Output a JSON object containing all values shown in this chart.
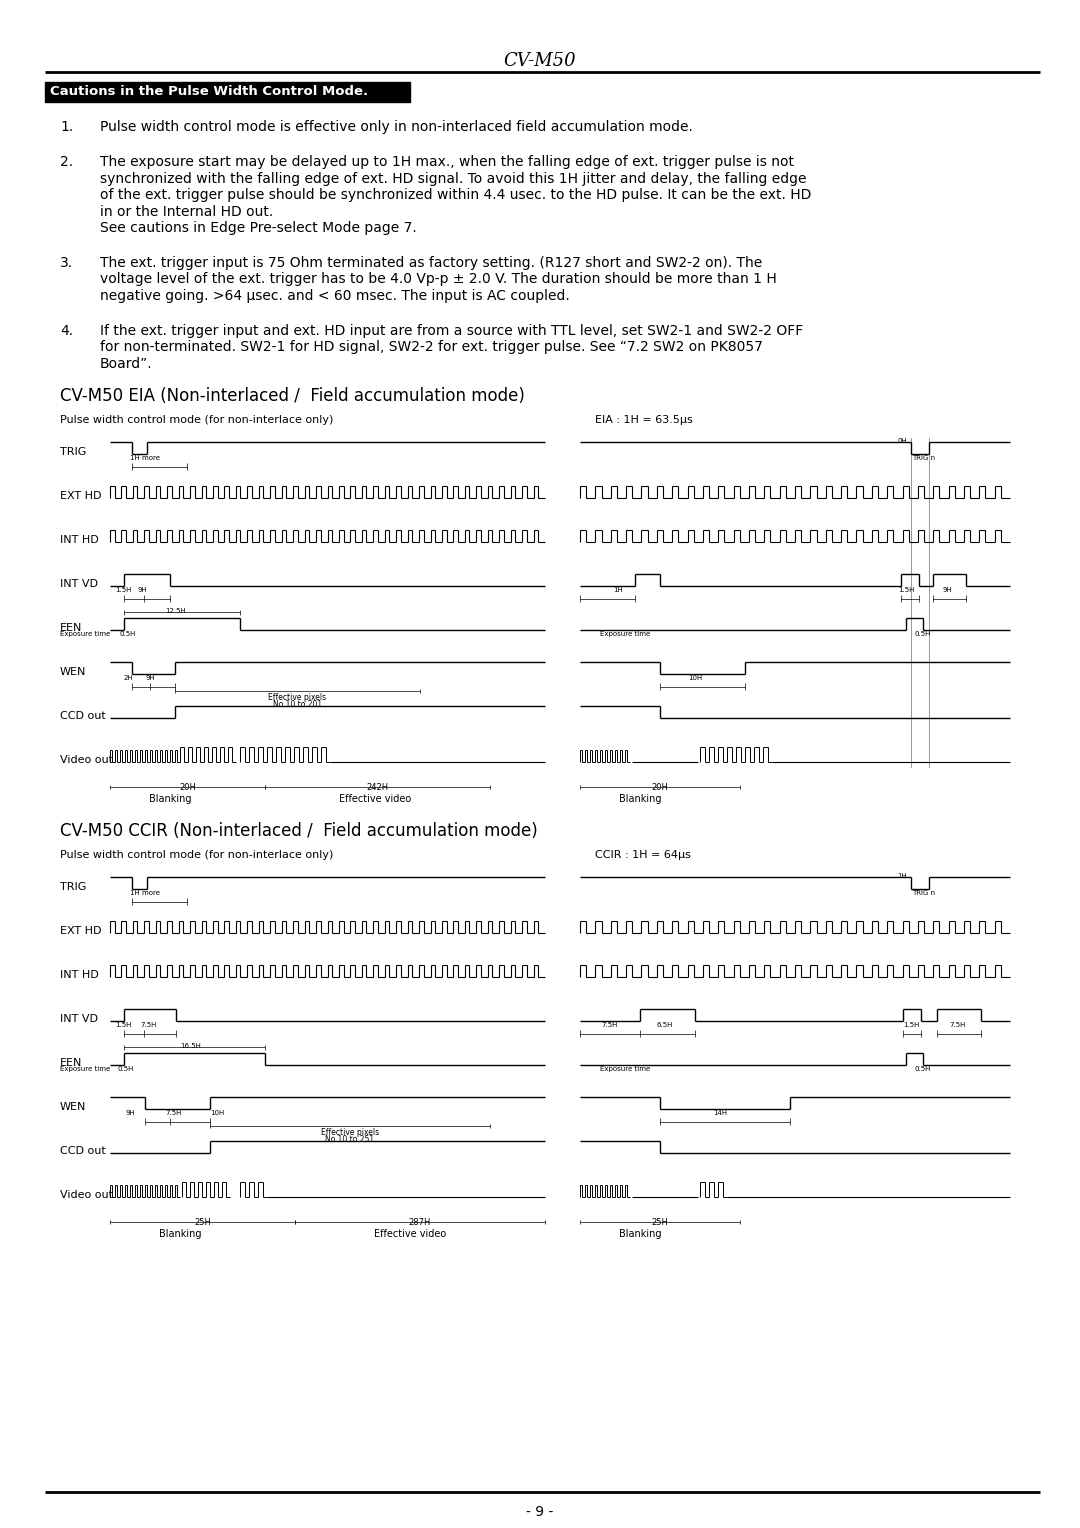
{
  "title": "CV-M50",
  "page_number": "- 9 -",
  "caution_header": "Cautions in the Pulse Width Control Mode.",
  "item1": "Pulse width control mode is effective only in non-interlaced field accumulation mode.",
  "item2a": "The exposure start may be delayed up to 1H max., when the falling edge of ext. trigger pulse is not",
  "item2b": "synchronized with the falling edge of ext. HD signal. To avoid this 1H jitter and delay, the falling edge",
  "item2c": "of the ext. trigger pulse should be synchronized within 4.4 usec. to the HD pulse. It can be the ext. HD",
  "item2d": "in or the Internal HD out.",
  "item2e": "See cautions in Edge Pre-select Mode page 7.",
  "item3a": "The ext. trigger input is 75 Ohm terminated as factory setting. (R127 short and SW2-2 on). The",
  "item3b": "voltage level of the ext. trigger has to be 4.0 Vp-p ± 2.0 V. The duration should be more than 1 H",
  "item3c": "negative going. >64 μsec. and < 60 msec. The input is AC coupled.",
  "item4a": "If the ext. trigger input and ext. HD input are from a source with TTL level, set SW2-1 and SW2-2 OFF",
  "item4b": "for non-terminated. SW2-1 for HD signal, SW2-2 for ext. trigger pulse. See “7.2 SW2 on PK8057",
  "item4c": "Board”.",
  "eia_title": "CV-M50 EIA (Non-interlaced /  Field accumulation mode)",
  "eia_subtitle": "Pulse width control mode (for non-interlace only)",
  "eia_note": "EIA : 1H = 63.5μs",
  "ccir_title": "CV-M50 CCIR (Non-interlaced /  Field accumulation mode)",
  "ccir_subtitle": "Pulse width control mode (for non-interlace only)",
  "ccir_note": "CCIR : 1H = 64μs",
  "bg_color": "#ffffff",
  "text_color": "#000000",
  "signal_names": [
    "TRIG",
    "EXT HD",
    "INT HD",
    "INT VD",
    "EEN",
    "WEN",
    "CCD out",
    "Video out"
  ]
}
